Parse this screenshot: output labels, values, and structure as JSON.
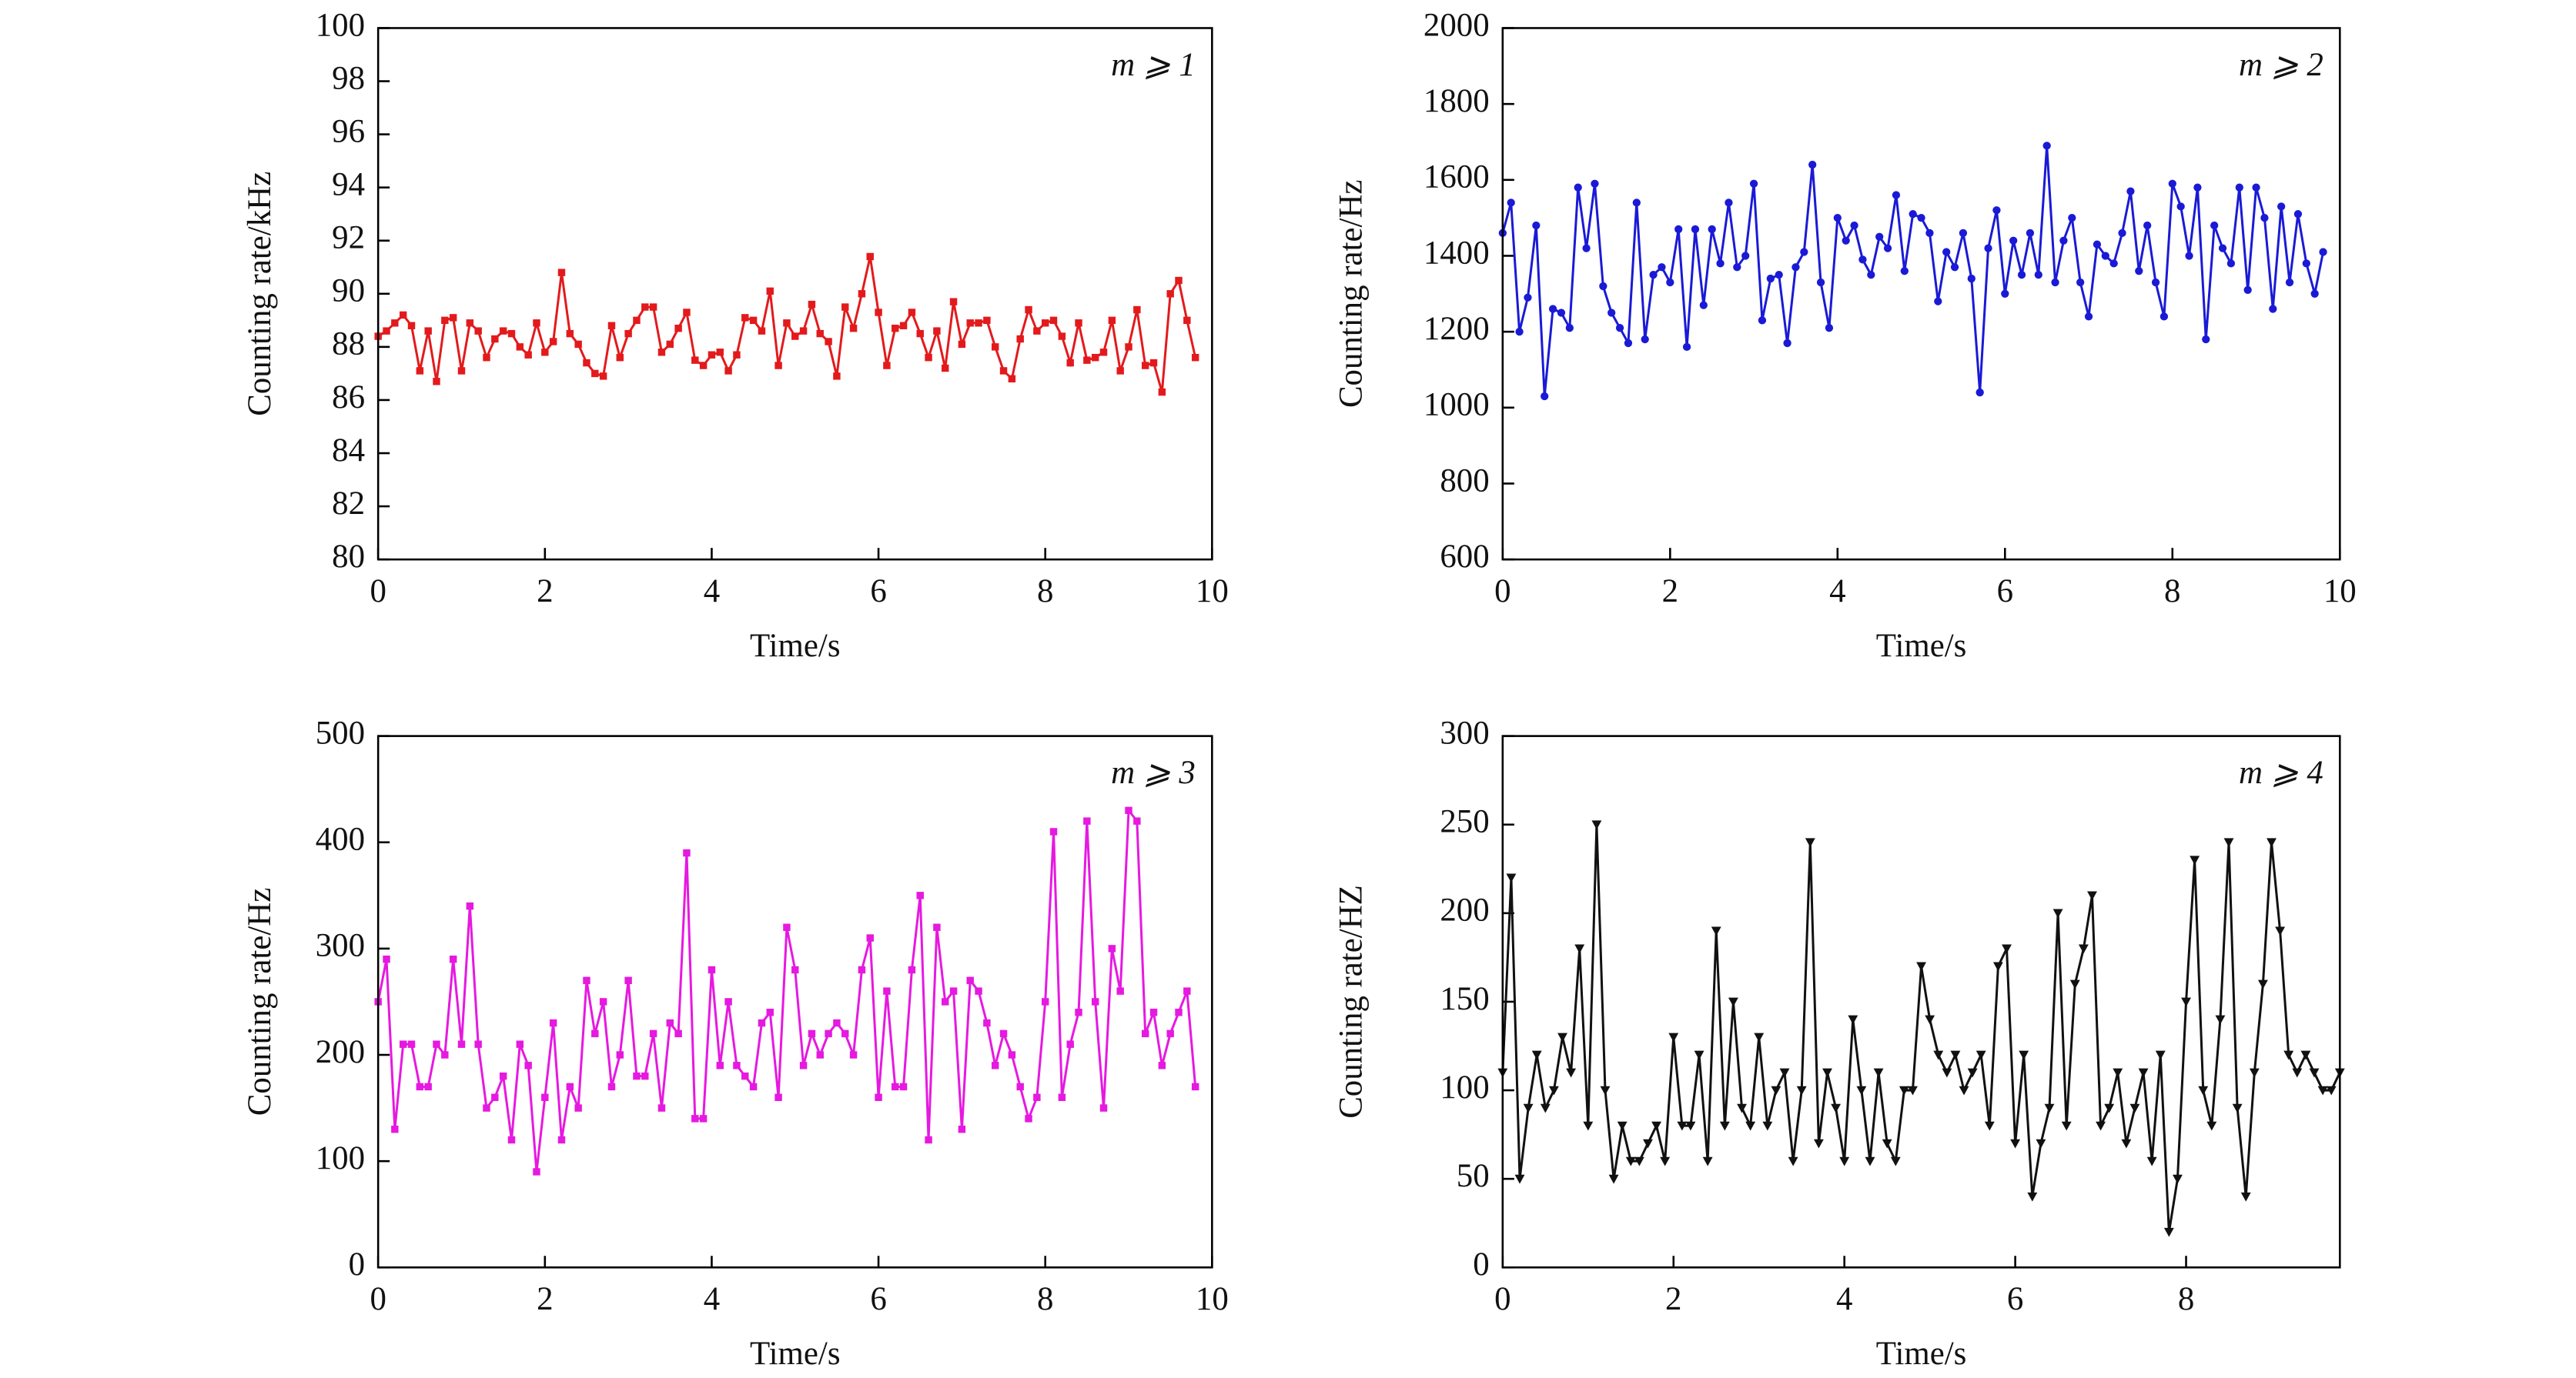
{
  "chart_data": [
    {
      "type": "line",
      "marker": "square",
      "annotation": "m ⩾ 1",
      "x_label": "Time/s",
      "y_label": "Counting rate/kHz",
      "xlim": [
        0,
        10
      ],
      "xticks": [
        0,
        2,
        4,
        6,
        8,
        10
      ],
      "ylim": [
        80,
        100
      ],
      "yticks": [
        80,
        82,
        84,
        86,
        88,
        90,
        92,
        94,
        96,
        98,
        100
      ],
      "grid": false,
      "series": [
        {
          "color": "#e31a1c",
          "x": [
            0,
            0.1,
            0.2,
            0.3,
            0.4,
            0.5,
            0.6,
            0.7,
            0.8,
            0.9,
            1,
            1.1,
            1.2,
            1.3,
            1.4,
            1.5,
            1.6,
            1.7,
            1.8,
            1.9,
            2,
            2.1,
            2.2,
            2.3,
            2.4,
            2.5,
            2.6,
            2.7,
            2.8,
            2.9,
            3,
            3.1,
            3.2,
            3.3,
            3.4,
            3.5,
            3.6,
            3.7,
            3.8,
            3.9,
            4,
            4.1,
            4.2,
            4.3,
            4.4,
            4.5,
            4.6,
            4.7,
            4.8,
            4.9,
            5,
            5.1,
            5.2,
            5.3,
            5.4,
            5.5,
            5.6,
            5.7,
            5.8,
            5.9,
            6,
            6.1,
            6.2,
            6.3,
            6.4,
            6.5,
            6.6,
            6.7,
            6.8,
            6.9,
            7,
            7.1,
            7.2,
            7.3,
            7.4,
            7.5,
            7.6,
            7.7,
            7.8,
            7.9,
            8,
            8.1,
            8.2,
            8.3,
            8.4,
            8.5,
            8.6,
            8.7,
            8.8,
            8.9,
            9,
            9.1,
            9.2,
            9.3,
            9.4,
            9.5,
            9.6,
            9.7,
            9.8
          ],
          "values": [
            88.4,
            88.6,
            88.9,
            89.2,
            88.8,
            87.1,
            88.6,
            86.7,
            89.0,
            89.1,
            87.1,
            88.9,
            88.6,
            87.6,
            88.3,
            88.6,
            88.5,
            88.0,
            87.7,
            88.9,
            87.8,
            88.2,
            90.8,
            88.5,
            88.1,
            87.4,
            87.0,
            86.9,
            88.8,
            87.6,
            88.5,
            89.0,
            89.5,
            89.5,
            87.8,
            88.1,
            88.7,
            89.3,
            87.5,
            87.3,
            87.7,
            87.8,
            87.1,
            87.7,
            89.1,
            89.0,
            88.6,
            90.1,
            87.3,
            88.9,
            88.4,
            88.6,
            89.6,
            88.5,
            88.2,
            86.9,
            89.5,
            88.7,
            90.0,
            91.4,
            89.3,
            87.3,
            88.7,
            88.8,
            89.3,
            88.5,
            87.6,
            88.6,
            87.2,
            89.7,
            88.1,
            88.9,
            88.9,
            89.0,
            88.0,
            87.1,
            86.8,
            88.3,
            89.4,
            88.6,
            88.9,
            89.0,
            88.4,
            87.4,
            88.9,
            87.5,
            87.6,
            87.8,
            89.0,
            87.1,
            88.0,
            89.4,
            87.3,
            87.4,
            86.3,
            90.0,
            90.5,
            89.0,
            87.6
          ]
        }
      ]
    },
    {
      "type": "line",
      "marker": "circle",
      "annotation": "m ⩾ 2",
      "x_label": "Time/s",
      "y_label": "Counting rate/Hz",
      "xlim": [
        0,
        10
      ],
      "xticks": [
        0,
        2,
        4,
        6,
        8,
        10
      ],
      "ylim": [
        600,
        2000
      ],
      "yticks": [
        600,
        800,
        1000,
        1200,
        1400,
        1600,
        1800,
        2000
      ],
      "grid": false,
      "series": [
        {
          "color": "#1a1ad6",
          "x": [
            0,
            0.1,
            0.2,
            0.3,
            0.4,
            0.5,
            0.6,
            0.7,
            0.8,
            0.9,
            1,
            1.1,
            1.2,
            1.3,
            1.4,
            1.5,
            1.6,
            1.7,
            1.8,
            1.9,
            2,
            2.1,
            2.2,
            2.3,
            2.4,
            2.5,
            2.6,
            2.7,
            2.8,
            2.9,
            3,
            3.1,
            3.2,
            3.3,
            3.4,
            3.5,
            3.6,
            3.7,
            3.8,
            3.9,
            4,
            4.1,
            4.2,
            4.3,
            4.4,
            4.5,
            4.6,
            4.7,
            4.8,
            4.9,
            5,
            5.1,
            5.2,
            5.3,
            5.4,
            5.5,
            5.6,
            5.7,
            5.8,
            5.9,
            6,
            6.1,
            6.2,
            6.3,
            6.4,
            6.5,
            6.6,
            6.7,
            6.8,
            6.9,
            7,
            7.1,
            7.2,
            7.3,
            7.4,
            7.5,
            7.6,
            7.7,
            7.8,
            7.9,
            8,
            8.1,
            8.2,
            8.3,
            8.4,
            8.5,
            8.6,
            8.7,
            8.8,
            8.9,
            9,
            9.1,
            9.2,
            9.3,
            9.4,
            9.5,
            9.6,
            9.7,
            9.8
          ],
          "values": [
            1460,
            1540,
            1200,
            1290,
            1480,
            1030,
            1260,
            1250,
            1210,
            1580,
            1420,
            1590,
            1320,
            1250,
            1210,
            1170,
            1540,
            1180,
            1350,
            1370,
            1330,
            1470,
            1160,
            1470,
            1270,
            1470,
            1380,
            1540,
            1370,
            1400,
            1590,
            1230,
            1340,
            1350,
            1170,
            1370,
            1410,
            1640,
            1330,
            1210,
            1500,
            1440,
            1480,
            1390,
            1350,
            1450,
            1420,
            1560,
            1360,
            1510,
            1500,
            1460,
            1280,
            1410,
            1370,
            1460,
            1340,
            1040,
            1420,
            1520,
            1300,
            1440,
            1350,
            1460,
            1350,
            1690,
            1330,
            1440,
            1500,
            1330,
            1240,
            1430,
            1400,
            1380,
            1460,
            1570,
            1360,
            1480,
            1330,
            1240,
            1590,
            1530,
            1400,
            1580,
            1180,
            1480,
            1420,
            1380,
            1580,
            1310,
            1580,
            1500,
            1260,
            1530,
            1330,
            1510,
            1380,
            1300,
            1410
          ]
        }
      ]
    },
    {
      "type": "line",
      "marker": "square",
      "annotation": "m ⩾ 3",
      "x_label": "Time/s",
      "y_label": "Counting rate/Hz",
      "xlim": [
        0,
        10
      ],
      "xticks": [
        0,
        2,
        4,
        6,
        8,
        10
      ],
      "ylim": [
        0,
        500
      ],
      "yticks": [
        0,
        100,
        200,
        300,
        400,
        500
      ],
      "grid": false,
      "series": [
        {
          "color": "#e619e0",
          "x": [
            0,
            0.1,
            0.2,
            0.3,
            0.4,
            0.5,
            0.6,
            0.7,
            0.8,
            0.9,
            1,
            1.1,
            1.2,
            1.3,
            1.4,
            1.5,
            1.6,
            1.7,
            1.8,
            1.9,
            2,
            2.1,
            2.2,
            2.3,
            2.4,
            2.5,
            2.6,
            2.7,
            2.8,
            2.9,
            3,
            3.1,
            3.2,
            3.3,
            3.4,
            3.5,
            3.6,
            3.7,
            3.8,
            3.9,
            4,
            4.1,
            4.2,
            4.3,
            4.4,
            4.5,
            4.6,
            4.7,
            4.8,
            4.9,
            5,
            5.1,
            5.2,
            5.3,
            5.4,
            5.5,
            5.6,
            5.7,
            5.8,
            5.9,
            6,
            6.1,
            6.2,
            6.3,
            6.4,
            6.5,
            6.6,
            6.7,
            6.8,
            6.9,
            7,
            7.1,
            7.2,
            7.3,
            7.4,
            7.5,
            7.6,
            7.7,
            7.8,
            7.9,
            8,
            8.1,
            8.2,
            8.3,
            8.4,
            8.5,
            8.6,
            8.7,
            8.8,
            8.9,
            9,
            9.1,
            9.2,
            9.3,
            9.4,
            9.5,
            9.6,
            9.7,
            9.8
          ],
          "values": [
            250,
            290,
            130,
            210,
            210,
            170,
            170,
            210,
            200,
            290,
            210,
            340,
            210,
            150,
            160,
            180,
            120,
            210,
            190,
            90,
            160,
            230,
            120,
            170,
            150,
            270,
            220,
            250,
            170,
            200,
            270,
            180,
            180,
            220,
            150,
            230,
            220,
            390,
            140,
            140,
            280,
            190,
            250,
            190,
            180,
            170,
            230,
            240,
            160,
            320,
            280,
            190,
            220,
            200,
            220,
            230,
            220,
            200,
            280,
            310,
            160,
            260,
            170,
            170,
            280,
            350,
            120,
            320,
            250,
            260,
            130,
            270,
            260,
            230,
            190,
            220,
            200,
            170,
            140,
            160,
            250,
            410,
            160,
            210,
            240,
            420,
            250,
            150,
            300,
            260,
            430,
            420,
            220,
            240,
            190,
            220,
            240,
            260,
            170
          ]
        }
      ]
    },
    {
      "type": "line",
      "marker": "triangle-down",
      "annotation": "m ⩾ 4",
      "x_label": "Time/s",
      "y_label": "Counting rate/HZ",
      "xlim": [
        0,
        9.8
      ],
      "xticks": [
        0,
        2,
        4,
        6,
        8
      ],
      "ylim": [
        0,
        300
      ],
      "yticks": [
        0,
        50,
        100,
        150,
        200,
        250,
        300
      ],
      "grid": false,
      "series": [
        {
          "color": "#111111",
          "x": [
            0,
            0.1,
            0.2,
            0.3,
            0.4,
            0.5,
            0.6,
            0.7,
            0.8,
            0.9,
            1,
            1.1,
            1.2,
            1.3,
            1.4,
            1.5,
            1.6,
            1.7,
            1.8,
            1.9,
            2,
            2.1,
            2.2,
            2.3,
            2.4,
            2.5,
            2.6,
            2.7,
            2.8,
            2.9,
            3,
            3.1,
            3.2,
            3.3,
            3.4,
            3.5,
            3.6,
            3.7,
            3.8,
            3.9,
            4,
            4.1,
            4.2,
            4.3,
            4.4,
            4.5,
            4.6,
            4.7,
            4.8,
            4.9,
            5,
            5.1,
            5.2,
            5.3,
            5.4,
            5.5,
            5.6,
            5.7,
            5.8,
            5.9,
            6,
            6.1,
            6.2,
            6.3,
            6.4,
            6.5,
            6.6,
            6.7,
            6.8,
            6.9,
            7,
            7.1,
            7.2,
            7.3,
            7.4,
            7.5,
            7.6,
            7.7,
            7.8,
            7.9,
            8,
            8.1,
            8.2,
            8.3,
            8.4,
            8.5,
            8.6,
            8.7,
            8.8,
            8.9,
            9,
            9.1,
            9.2,
            9.3,
            9.4,
            9.5,
            9.6,
            9.7,
            9.8
          ],
          "values": [
            110,
            220,
            50,
            90,
            120,
            90,
            100,
            130,
            110,
            180,
            80,
            250,
            100,
            50,
            80,
            60,
            60,
            70,
            80,
            60,
            130,
            80,
            80,
            120,
            60,
            190,
            80,
            150,
            90,
            80,
            130,
            80,
            100,
            110,
            60,
            100,
            240,
            70,
            110,
            90,
            60,
            140,
            100,
            60,
            110,
            70,
            60,
            100,
            100,
            170,
            140,
            120,
            110,
            120,
            100,
            110,
            120,
            80,
            170,
            180,
            70,
            120,
            40,
            70,
            90,
            200,
            80,
            160,
            180,
            210,
            80,
            90,
            110,
            70,
            90,
            110,
            60,
            120,
            20,
            50,
            150,
            230,
            100,
            80,
            140,
            240,
            90,
            40,
            110,
            160,
            240,
            190,
            120,
            110,
            120,
            110,
            100,
            100,
            110
          ]
        }
      ]
    }
  ]
}
